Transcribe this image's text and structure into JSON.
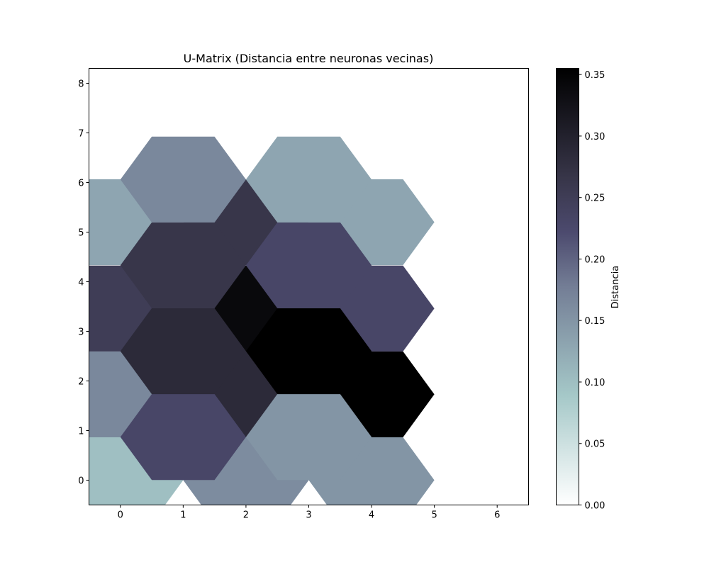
{
  "chart_data": {
    "type": "heatmap",
    "subtype": "hexagonal-u-matrix",
    "title": "U-Matrix (Distancia entre neuronas vecinas)",
    "xlabel": "",
    "ylabel": "",
    "xlim": [
      -0.5,
      6.5
    ],
    "ylim": [
      -0.5,
      8.3
    ],
    "x_ticks": [
      0,
      1,
      2,
      3,
      4,
      5,
      6
    ],
    "y_ticks": [
      0,
      1,
      2,
      3,
      4,
      5,
      6,
      7,
      8
    ],
    "grid": false,
    "colormap": "bone_r",
    "colorbar": {
      "label": "Distancia",
      "range": [
        0,
        0.355
      ],
      "ticks": [
        0.0,
        0.05,
        0.1,
        0.15,
        0.2,
        0.25,
        0.3,
        0.35
      ],
      "tick_labels": [
        "0.00",
        "0.05",
        "0.10",
        "0.15",
        "0.20",
        "0.25",
        "0.30",
        "0.35"
      ],
      "stops": [
        {
          "v": 0.0,
          "color": "#ffffff"
        },
        {
          "v": 0.089,
          "color": "#a5c8c8"
        },
        {
          "v": 0.178,
          "color": "#737d95"
        },
        {
          "v": 0.222,
          "color": "#4c4a6e"
        },
        {
          "v": 0.267,
          "color": "#373548"
        },
        {
          "v": 0.355,
          "color": "#000000"
        }
      ]
    },
    "cells": [
      {
        "x": 0,
        "y": 0.0,
        "value": 0.1
      },
      {
        "x": 2,
        "y": 0.0,
        "value": 0.16
      },
      {
        "x": 4,
        "y": 0.0,
        "value": 0.15
      },
      {
        "x": 0,
        "y": 1.73,
        "value": 0.165
      },
      {
        "x": 2,
        "y": 1.73,
        "value": 0.285
      },
      {
        "x": 4,
        "y": 1.73,
        "value": 0.355
      },
      {
        "x": 0,
        "y": 3.46,
        "value": 0.25
      },
      {
        "x": 2,
        "y": 3.46,
        "value": 0.34
      },
      {
        "x": 4,
        "y": 3.46,
        "value": 0.23
      },
      {
        "x": 0,
        "y": 5.2,
        "value": 0.13
      },
      {
        "x": 2,
        "y": 5.2,
        "value": 0.265
      },
      {
        "x": 4,
        "y": 5.2,
        "value": 0.13
      },
      {
        "x": 1,
        "y": 0.87,
        "value": 0.23
      },
      {
        "x": 3,
        "y": 0.87,
        "value": 0.15
      },
      {
        "x": 1,
        "y": 2.6,
        "value": 0.285
      },
      {
        "x": 3,
        "y": 2.6,
        "value": 0.355
      },
      {
        "x": 1,
        "y": 4.33,
        "value": 0.265
      },
      {
        "x": 3,
        "y": 4.33,
        "value": 0.23
      },
      {
        "x": 1,
        "y": 6.06,
        "value": 0.165
      },
      {
        "x": 3,
        "y": 6.06,
        "value": 0.13
      }
    ]
  }
}
